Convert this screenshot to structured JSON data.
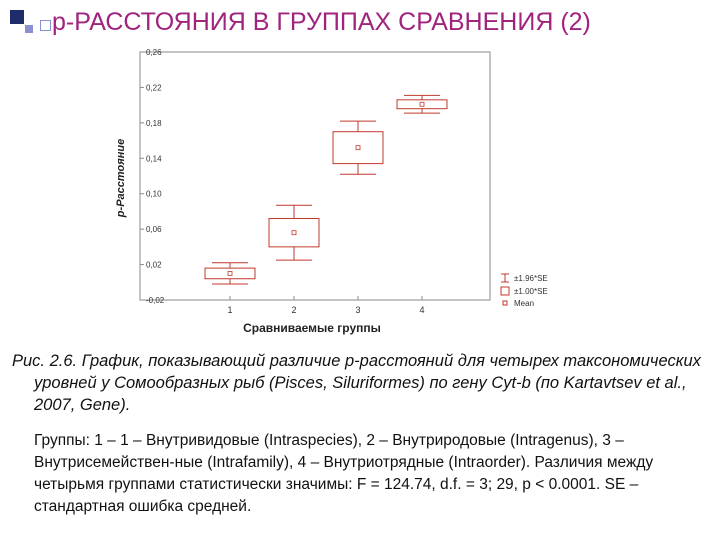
{
  "slide": {
    "title": "р-РАССТОЯНИЯ В ГРУППАХ СРАВНЕНИЯ (2)",
    "caption": "Рис. 2.6. График, показывающий различие р-расстояний для четырех таксономических уровней у Сомообразных рыб (Pisces, Siluriformes) по гену Cyt-b (по Kartavtsev et al., 2007, Gene).",
    "note": "Группы: 1 – 1 – Внутривидовые (Intraspecies), 2 – Внутриродовые (Intragenus), 3 – Внутрисемействен-ные (Intrafamily), 4 – Внутриотрядные (Intraorder). Различия между четырьмя группами статистически значимы: F = 124.74, d.f. = 3; 29, p < 0.0001. SE – стандартная ошибка средней.",
    "accent_color": "#a0247e",
    "bullet_colors": [
      "#1f2d6b",
      "#8a8fd0"
    ]
  },
  "chart_data": {
    "type": "box",
    "xlabel": "Сравниваемые группы",
    "ylabel": "p-Расстояние",
    "ylim": [
      -0.02,
      0.26
    ],
    "yticks": [
      "-0,02",
      "0,02",
      "0,06",
      "0,10",
      "0,14",
      "0,18",
      "0,22",
      "0,26"
    ],
    "ytick_values": [
      -0.02,
      0.02,
      0.06,
      0.1,
      0.14,
      0.18,
      0.22,
      0.26
    ],
    "categories": [
      "1",
      "2",
      "3",
      "4"
    ],
    "mean": [
      0.01,
      0.056,
      0.152,
      0.201
    ],
    "se_1": [
      0.006,
      0.016,
      0.018,
      0.005
    ],
    "se_196": [
      0.012,
      0.031,
      0.03,
      0.01
    ],
    "legend": [
      "±1.96*SE",
      "±1.00*SE",
      "Mean"
    ],
    "legend_position": "bottom-right",
    "box_color": "#c0392b"
  }
}
